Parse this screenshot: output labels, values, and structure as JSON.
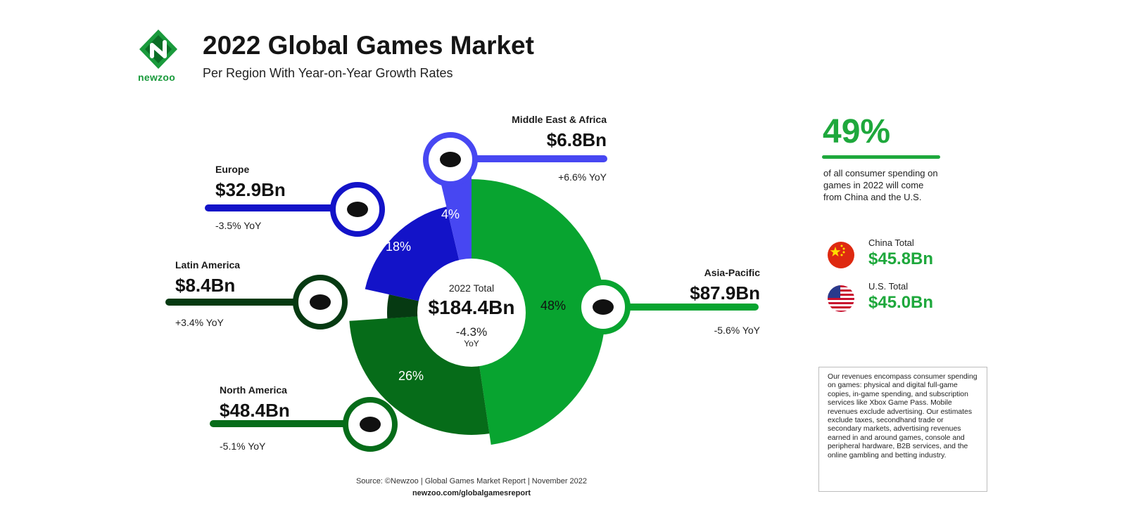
{
  "header": {
    "title": "2022 Global Games Market",
    "subtitle": "Per Region With Year-on-Year Growth Rates",
    "logo_text": "newzoo"
  },
  "colors": {
    "asia_pacific": "#08a430",
    "north_america": "#066c19",
    "latin_america": "#063a12",
    "europe": "#1313c8",
    "middle_east_africa": "#4747f2",
    "accent_green": "#1ea83c"
  },
  "chart_data": {
    "type": "pie",
    "title": "2022 Global Games Market",
    "center": {
      "label": "2022 Total",
      "value": "$184.4Bn",
      "yoy": "-4.3%",
      "yoy_unit": "YoY"
    },
    "slices": [
      {
        "region": "Asia-Pacific",
        "value_bn": 87.9,
        "value_label": "$87.9Bn",
        "share_pct": 48,
        "share_label": "48%",
        "yoy": "-5.6% YoY",
        "color": "#08a430",
        "icon": "asia-pacific-map-icon"
      },
      {
        "region": "North America",
        "value_bn": 48.4,
        "value_label": "$48.4Bn",
        "share_pct": 26,
        "share_label": "26%",
        "yoy": "-5.1% YoY",
        "color": "#066c19",
        "icon": "north-america-map-icon"
      },
      {
        "region": "Latin America",
        "value_bn": 8.4,
        "value_label": "$8.4Bn",
        "share_pct": 5,
        "share_label": "5%",
        "yoy": "+3.4% YoY",
        "color": "#063a12",
        "icon": "latin-america-map-icon"
      },
      {
        "region": "Europe",
        "value_bn": 32.9,
        "value_label": "$32.9Bn",
        "share_pct": 18,
        "share_label": "18%",
        "yoy": "-3.5% YoY",
        "color": "#1313c8",
        "icon": "europe-map-icon"
      },
      {
        "region": "Middle East & Africa",
        "value_bn": 6.8,
        "value_label": "$6.8Bn",
        "share_pct": 4,
        "share_label": "4%",
        "yoy": "+6.6% YoY",
        "color": "#4747f2",
        "icon": "middle-east-africa-map-icon"
      }
    ]
  },
  "stats": {
    "highlight_pct": "49%",
    "highlight_text": "of all consumer spending on games in 2022 will come from China and the U.S.",
    "china": {
      "label": "China Total",
      "value": "$45.8Bn",
      "icon": "china-flag-icon"
    },
    "us": {
      "label": "U.S. Total",
      "value": "$45.0Bn",
      "icon": "us-flag-icon"
    }
  },
  "note": "Our revenues encompass consumer spending on games: physical and digital full-game copies, in-game spending, and subscription services like Xbox Game Pass. Mobile revenues exclude advertising. Our estimates exclude taxes, secondhand trade or secondary markets, advertising revenues earned in and around games, console and peripheral hardware, B2B services, and the online gambling and betting industry.",
  "footer": {
    "source": "Source: ©Newzoo | Global Games Market Report | November 2022",
    "url": "newzoo.com/globalgamesreport"
  }
}
